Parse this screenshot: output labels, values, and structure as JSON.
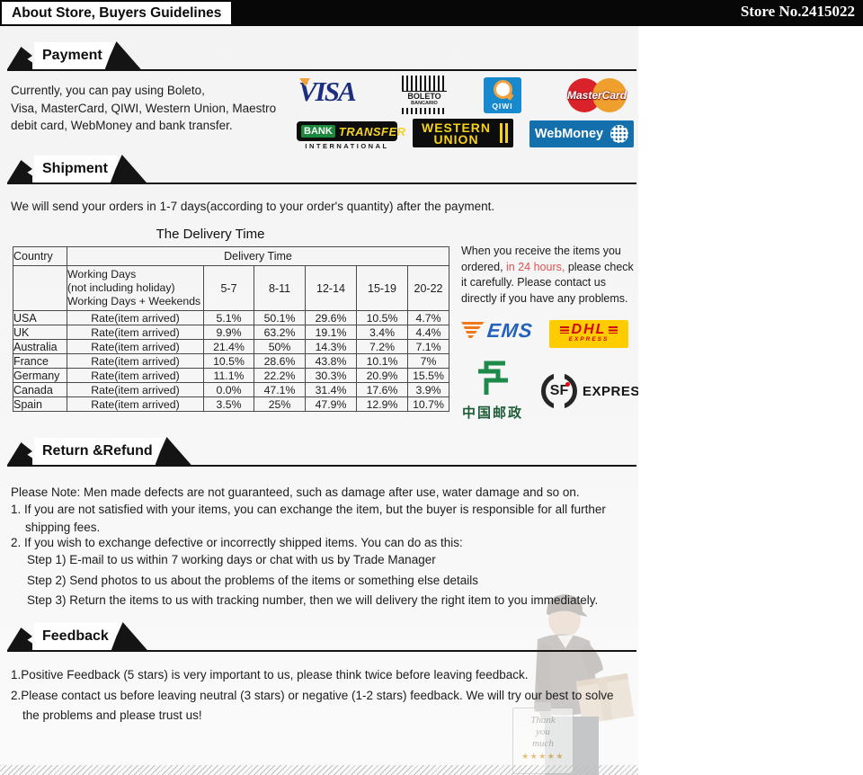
{
  "header": {
    "title": "About Store, Buyers Guidelines",
    "store_no": "Store No.2415022"
  },
  "sections": {
    "payment": {
      "heading": "Payment",
      "text": "Currently, you can pay using Boleto,\nVisa, MasterCard, QIWI, Western Union, Maestro\ndebit card, WebMoney and bank transfer.",
      "logos": {
        "visa": "VISA",
        "boleto_line1": "BOLETO",
        "boleto_line2": "BANCARIO",
        "qiwi": "QIWI",
        "mastercard": "MasterCard",
        "bank": "BANK",
        "transfer": "TRANSFER",
        "international": "INTERNATIONAL",
        "western_line1": "WESTERN",
        "western_line2": "UNION",
        "webmoney": "WebMoney"
      }
    },
    "shipment": {
      "heading": "Shipment",
      "intro": "We will send your orders in 1-7 days(according to your order's quantity) after the payment.",
      "table_title": "The Delivery Time",
      "table": {
        "country_header": "Country",
        "delivery_header": "Delivery Time",
        "working_days": "Working Days\n(not including holiday)\nWorking Days + Weekends",
        "day_ranges": [
          "5-7",
          "8-11",
          "12-14",
          "15-19",
          "20-22"
        ],
        "rate_label": "Rate(item arrived)",
        "rows": [
          {
            "country": "USA",
            "rates": [
              "5.1%",
              "50.1%",
              "29.6%",
              "10.5%",
              "4.7%"
            ]
          },
          {
            "country": "UK",
            "rates": [
              "9.9%",
              "63.2%",
              "19.1%",
              "3.4%",
              "4.4%"
            ]
          },
          {
            "country": "Australia",
            "rates": [
              "21.4%",
              "50%",
              "14.3%",
              "7.2%",
              "7.1%"
            ]
          },
          {
            "country": "France",
            "rates": [
              "10.5%",
              "28.6%",
              "43.8%",
              "10.1%",
              "7%"
            ]
          },
          {
            "country": "Germany",
            "rates": [
              "11.1%",
              "22.2%",
              "30.3%",
              "20.9%",
              "15.5%"
            ]
          },
          {
            "country": "Canada",
            "rates": [
              "0.0%",
              "47.1%",
              "31.4%",
              "17.6%",
              "3.9%"
            ]
          },
          {
            "country": "Spain",
            "rates": [
              "3.5%",
              "25%",
              "47.9%",
              "12.9%",
              "10.7%"
            ]
          }
        ]
      },
      "notice": {
        "before": "When you receive the items you ordered, ",
        "highlight": "in 24 hours,",
        "after": " please check it carefully. Please contact us directly if you have any problems."
      },
      "logos": {
        "ems": "EMS",
        "dhl": "DHL",
        "dhl_express": "EXPRESS",
        "china_post": "中国邮政",
        "sf": "SF",
        "sf_express": "EXPRESS"
      }
    },
    "returns": {
      "heading": "Return &Refund",
      "note": "Please Note: Men made defects are not guaranteed, such as damage after use, water  damage and so on.",
      "item1": "1. If you are not satisfied with your items, you can exchange the item, but the buyer is responsible for all further shipping fees.",
      "item2": "2. If you wish to exchange defective or incorrectly shipped items. You can do as this:",
      "steps": [
        "Step 1) E-mail to us within 7 working days or chat with us by Trade Manager",
        "Step 2) Send photos to us about the problems of the items or something else details",
        "Step 3) Return the items to us with tracking number, then we will delivery the right item to you immediately."
      ]
    },
    "feedback": {
      "heading": "Feedback",
      "item1": "1.Positive Feedback (5 stars) is very important to us, please think twice before leaving feedback.",
      "item2": "2.Please contact us before leaving neutral (3 stars) or negative (1-2 stars) feedback. We will try our best to solve the problems and please trust us!",
      "sign_text": "Thank\nyou\nmuch",
      "sign_stars": "★★★★★"
    }
  },
  "colors": {
    "topbar": "#070707",
    "highlight_red": "#e05252",
    "visa_blue": "#1b2f7e",
    "mastercard_red": "#d9222a",
    "mastercard_orange": "#ee9f2d",
    "qiwi_blue": "#1789cf",
    "webmoney_blue": "#1470ad",
    "wu_yellow": "#f7d117",
    "dhl_yellow": "#ffcc00",
    "dhl_red": "#d40511",
    "ems_blue": "#2463bd",
    "ems_orange": "#f07818",
    "china_post_green": "#1e8a4a",
    "sf_red": "#e60012"
  }
}
